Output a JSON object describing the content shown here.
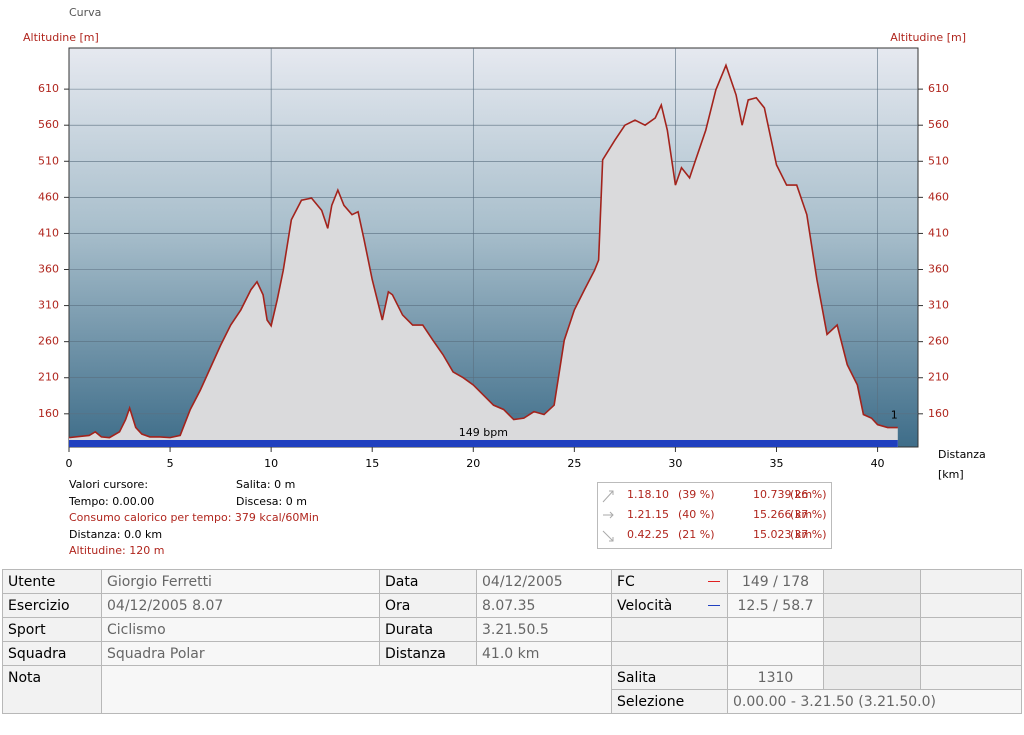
{
  "header": "Curva",
  "chart_data": {
    "type": "area",
    "ylabel": "Altitudine [m]",
    "xlabel": "Distanza",
    "xunit": "[km]",
    "x": [
      0,
      1,
      1.3,
      1.6,
      2,
      2.5,
      2.8,
      3,
      3.3,
      3.6,
      4,
      4.5,
      5,
      5.5,
      6,
      6.5,
      7,
      7.5,
      8,
      8.5,
      9,
      9.3,
      9.6,
      9.8,
      10,
      10.3,
      10.6,
      11,
      11.5,
      12,
      12.5,
      12.8,
      13,
      13.3,
      13.6,
      14,
      14.3,
      14.6,
      15,
      15.5,
      15.8,
      16,
      16.5,
      17,
      17.5,
      18,
      18.5,
      19,
      19.5,
      20,
      20.5,
      21,
      21.5,
      22,
      22.5,
      23,
      23.5,
      24,
      24.5,
      25,
      25.5,
      26,
      26.2,
      26.4,
      27,
      27.5,
      28,
      28.5,
      29,
      29.3,
      29.6,
      30,
      30.3,
      30.7,
      31,
      31.5,
      32,
      32.5,
      33,
      33.3,
      33.6,
      34,
      34.4,
      35,
      35.5,
      36,
      36.5,
      37,
      37.5,
      38,
      38.5,
      39,
      39.3,
      39.7,
      40,
      40.5,
      41
    ],
    "series": [
      {
        "name": "Altitudine",
        "color": "#a3231c",
        "values": [
          127,
          130,
          135,
          128,
          127,
          135,
          152,
          168,
          141,
          132,
          128,
          128,
          127,
          130,
          166,
          193,
          224,
          255,
          283,
          304,
          332,
          343,
          325,
          290,
          282,
          318,
          359,
          429,
          456,
          459,
          442,
          417,
          449,
          470,
          449,
          436,
          440,
          401,
          346,
          290,
          329,
          325,
          297,
          283,
          283,
          262,
          242,
          218,
          210,
          200,
          186,
          172,
          166,
          152,
          154,
          163,
          159,
          172,
          262,
          304,
          332,
          359,
          373,
          512,
          539,
          560,
          567,
          560,
          570,
          588,
          553,
          477,
          501,
          487,
          512,
          553,
          609,
          643,
          602,
          560,
          595,
          598,
          584,
          505,
          477,
          477,
          436,
          346,
          270,
          283,
          228,
          200,
          159,
          154,
          145,
          141,
          141
        ]
      }
    ],
    "xlim": [
      0,
      42
    ],
    "ylim": [
      114,
      667
    ],
    "xticks": [
      0,
      5,
      10,
      15,
      20,
      25,
      30,
      35,
      40
    ],
    "yticks": [
      160,
      210,
      260,
      310,
      360,
      410,
      460,
      510,
      560,
      610
    ],
    "xgrid": [
      10,
      20,
      30,
      40
    ],
    "hr_label": "149 bpm",
    "lap_label": "1"
  },
  "cursor": {
    "title": "Valori cursore:",
    "tempo": "Tempo: 0.00.00",
    "consumo": "Consumo calorico per tempo: 379 kcal/60Min",
    "distanza": "Distanza: 0.0 km",
    "altitudine": "Altitudine: 120 m",
    "salita": "Salita: 0 m",
    "discesa": "Discesa: 0 m"
  },
  "stats": [
    [
      "1.18.10",
      "(39 %)",
      "10.739 km",
      "(26 %)"
    ],
    [
      "1.21.15",
      "(40 %)",
      "15.266 km",
      "(37 %)"
    ],
    [
      "0.42.25",
      "(21 %)",
      "15.023 km",
      "(37 %)"
    ]
  ],
  "table": {
    "rows": [
      [
        "Utente",
        "Giorgio Ferretti",
        "Data",
        "04/12/2005",
        "FC",
        "149 / 178"
      ],
      [
        "Esercizio",
        "04/12/2005 8.07",
        "Ora",
        "8.07.35",
        "Velocità",
        "12.5 / 58.7"
      ],
      [
        "Sport",
        "Ciclismo",
        "Durata",
        "3.21.50.5"
      ],
      [
        "Squadra",
        "Squadra Polar",
        "Distanza",
        "41.0 km"
      ],
      [
        "Nota",
        "Salita",
        "1310"
      ],
      [
        "Selezione",
        "0.00.00 - 3.21.50 (3.21.50.0)"
      ]
    ]
  }
}
